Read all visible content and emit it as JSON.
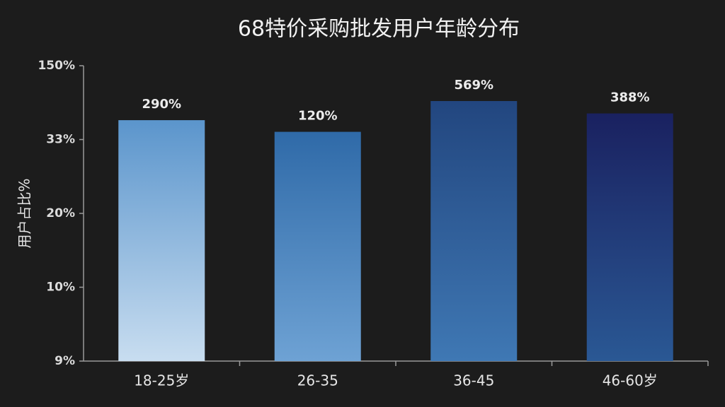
{
  "chart_data": {
    "type": "bar",
    "title": "68特价采购批发用户年龄分布",
    "y_label": "用户占比%",
    "categories": [
      "18-25岁",
      "26-35",
      "36-45",
      "46-60岁"
    ],
    "values": [
      290,
      120,
      569,
      388
    ],
    "value_labels": [
      "290%",
      "120%",
      "569%",
      "388%"
    ],
    "colors": [
      [
        "#5b95cc",
        "#c8ddf0"
      ],
      [
        "#2f6aa8",
        "#6ea2d4"
      ],
      [
        "#22467f",
        "#3f78b4"
      ],
      [
        "#1a2160",
        "#2a5894"
      ]
    ],
    "yticks": [
      "150%",
      "33%",
      "20%",
      "10%",
      "9%"
    ]
  }
}
